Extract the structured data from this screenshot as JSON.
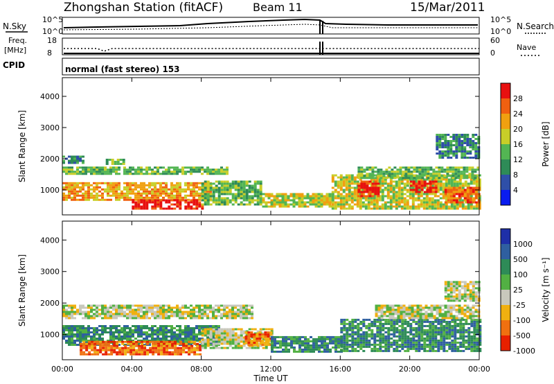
{
  "header": {
    "title": "Zhongshan Station (fitACF)",
    "beam": "Beam 11",
    "date": "15/Mar/2011"
  },
  "status_panels": {
    "nsky_label": "N.Sky",
    "nsearch_label": "N.Search",
    "noise_ticks": [
      "10^5",
      "10^0"
    ],
    "freq_label": "Freq.",
    "freq_unit": "[MHz]",
    "freq_ticks": [
      "18",
      "8"
    ],
    "nave_label": "Nave",
    "nave_ticks": [
      "60",
      "0"
    ],
    "cpid_label": "CPID",
    "cpid_value": "normal (fast stereo) 153"
  },
  "colors": {
    "power": [
      "#0a1cf0",
      "#2f4fa8",
      "#2e8b57",
      "#53b553",
      "#c8ce28",
      "#f0a010",
      "#f06010",
      "#e81010"
    ],
    "velocity": [
      "#1e2fa8",
      "#2f5fa0",
      "#2e8b57",
      "#52b043",
      "#c8c8bc",
      "#f0b010",
      "#f07010",
      "#e82000"
    ]
  },
  "chart_data": [
    {
      "type": "heatmap",
      "title": "",
      "xlabel": "Time UT",
      "ylabel": "Slant Range [km]",
      "xlim": [
        0,
        24
      ],
      "ylim": [
        200,
        4600
      ],
      "x_ticks": [
        "00:00",
        "04:00",
        "08:00",
        "12:00",
        "16:00",
        "20:00",
        "00:00"
      ],
      "y_ticks": [
        "1000",
        "2000",
        "3000",
        "4000"
      ],
      "colorbar_label": "Power [dB]",
      "colorbar_ticks": [
        "4",
        "8",
        "12",
        "16",
        "20",
        "24",
        "28"
      ],
      "bands": [
        {
          "t0": 0.0,
          "t1": 9.5,
          "r0": 1500,
          "r1": 1750,
          "level": 3
        },
        {
          "t0": 0.0,
          "t1": 1.2,
          "r0": 1850,
          "r1": 2100,
          "level": 2
        },
        {
          "t0": 2.5,
          "t1": 3.5,
          "r0": 1850,
          "r1": 2000,
          "level": 3
        },
        {
          "t0": 0.0,
          "t1": 8.5,
          "r0": 650,
          "r1": 1250,
          "level": 5
        },
        {
          "t0": 4.0,
          "t1": 8.0,
          "r0": 400,
          "r1": 700,
          "level": 7
        },
        {
          "t0": 8.0,
          "t1": 11.5,
          "r0": 500,
          "r1": 1300,
          "level": 3
        },
        {
          "t0": 11.5,
          "t1": 15.5,
          "r0": 450,
          "r1": 900,
          "level": 4
        },
        {
          "t0": 15.5,
          "t1": 24.0,
          "r0": 400,
          "r1": 1500,
          "level": 4
        },
        {
          "t0": 17.0,
          "t1": 18.2,
          "r0": 800,
          "r1": 1300,
          "level": 7
        },
        {
          "t0": 20.0,
          "t1": 21.5,
          "r0": 900,
          "r1": 1300,
          "level": 7
        },
        {
          "t0": 22.0,
          "t1": 24.0,
          "r0": 600,
          "r1": 1100,
          "level": 6
        },
        {
          "t0": 17.0,
          "t1": 24.0,
          "r0": 1350,
          "r1": 1750,
          "level": 3
        },
        {
          "t0": 21.5,
          "t1": 24.0,
          "r0": 2000,
          "r1": 2800,
          "level": 2
        }
      ]
    },
    {
      "type": "heatmap",
      "title": "",
      "xlabel": "Time UT",
      "ylabel": "Slant Range [km]",
      "xlim": [
        0,
        24
      ],
      "ylim": [
        200,
        4600
      ],
      "x_ticks": [
        "00:00",
        "04:00",
        "08:00",
        "12:00",
        "16:00",
        "20:00",
        "00:00"
      ],
      "y_ticks": [
        "1000",
        "2000",
        "3000",
        "4000"
      ],
      "colorbar_label": "Velocity [m s⁻¹]",
      "colorbar_ticks": [
        "1000",
        "500",
        "100",
        "25",
        "-25",
        "-100",
        "-500",
        "-1000"
      ],
      "bands": [
        {
          "t0": 0.0,
          "t1": 11.0,
          "r0": 1550,
          "r1": 1950,
          "level": 4
        },
        {
          "t0": 0.0,
          "t1": 9.0,
          "r0": 700,
          "r1": 1300,
          "level": 2
        },
        {
          "t0": 1.0,
          "t1": 8.0,
          "r0": 400,
          "r1": 800,
          "level": 6
        },
        {
          "t0": 8.0,
          "t1": 12.0,
          "r0": 550,
          "r1": 1200,
          "level": 4
        },
        {
          "t0": 10.5,
          "t1": 12.0,
          "r0": 700,
          "r1": 1100,
          "level": 6
        },
        {
          "t0": 12.0,
          "t1": 16.0,
          "r0": 450,
          "r1": 950,
          "level": 2
        },
        {
          "t0": 16.0,
          "t1": 24.0,
          "r0": 450,
          "r1": 1500,
          "level": 2
        },
        {
          "t0": 18.0,
          "t1": 24.0,
          "r0": 1550,
          "r1": 1950,
          "level": 4
        },
        {
          "t0": 22.0,
          "t1": 24.0,
          "r0": 2100,
          "r1": 2700,
          "level": 4
        }
      ]
    }
  ]
}
